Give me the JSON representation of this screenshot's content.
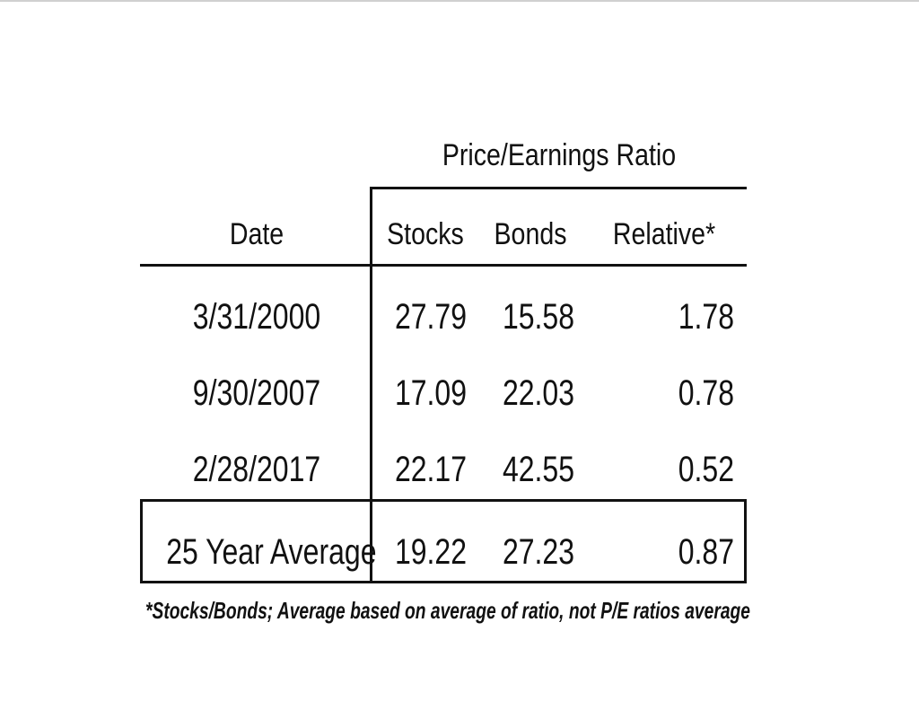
{
  "table": {
    "group_header": "Price/Earnings Ratio",
    "columns": {
      "date": "Date",
      "stocks": "Stocks",
      "bonds": "Bonds",
      "relative": "Relative*"
    },
    "rows": [
      {
        "date": "3/31/2000",
        "stocks": "27.79",
        "bonds": "15.58",
        "relative": "1.78"
      },
      {
        "date": "9/30/2007",
        "stocks": "17.09",
        "bonds": "22.03",
        "relative": "0.78"
      },
      {
        "date": "2/28/2017",
        "stocks": "22.17",
        "bonds": "42.55",
        "relative": "0.52"
      }
    ],
    "average": {
      "label": "25 Year Average",
      "stocks": "19.22",
      "bonds": "27.23",
      "relative": "0.87"
    },
    "footnote": "*Stocks/Bonds; Average based on average of ratio, not P/E ratios average"
  }
}
